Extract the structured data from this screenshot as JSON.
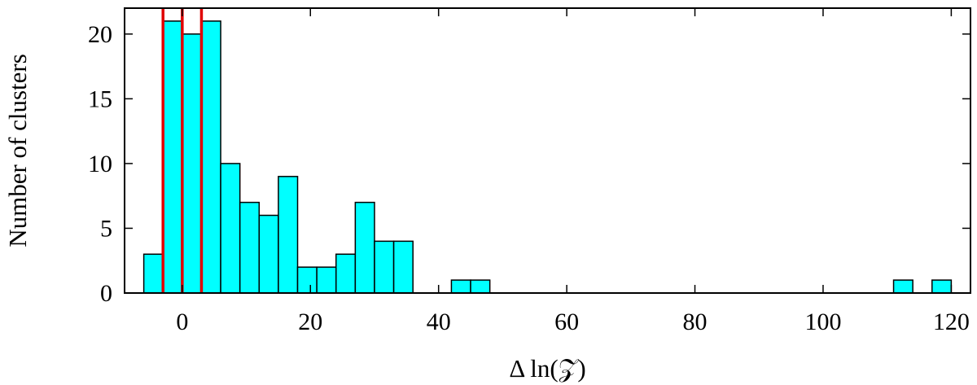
{
  "chart_data": {
    "type": "bar",
    "title": "",
    "xlabel": "Δ ln(𝒵)",
    "ylabel": "Number of clusters",
    "xlim": [
      -9,
      123
    ],
    "ylim": [
      0,
      22
    ],
    "bin_width": 3,
    "xticks": [
      0,
      20,
      40,
      60,
      80,
      100,
      120
    ],
    "yticks": [
      0,
      5,
      10,
      15,
      20
    ],
    "bins": [
      {
        "left": -6,
        "count": 3
      },
      {
        "left": -3,
        "count": 21
      },
      {
        "left": 0,
        "count": 20
      },
      {
        "left": 3,
        "count": 21
      },
      {
        "left": 6,
        "count": 10
      },
      {
        "left": 9,
        "count": 7
      },
      {
        "left": 12,
        "count": 6
      },
      {
        "left": 15,
        "count": 9
      },
      {
        "left": 18,
        "count": 2
      },
      {
        "left": 21,
        "count": 2
      },
      {
        "left": 24,
        "count": 3
      },
      {
        "left": 27,
        "count": 7
      },
      {
        "left": 30,
        "count": 4
      },
      {
        "left": 33,
        "count": 4
      },
      {
        "left": 42,
        "count": 1
      },
      {
        "left": 45,
        "count": 1
      },
      {
        "left": 111,
        "count": 1
      },
      {
        "left": 117,
        "count": 1
      }
    ],
    "vertical_lines": [
      -3,
      0,
      3
    ],
    "colors": {
      "bar_fill": "#00ffff",
      "bar_edge": "#000000",
      "vline": "#e00000"
    },
    "grid": false
  }
}
